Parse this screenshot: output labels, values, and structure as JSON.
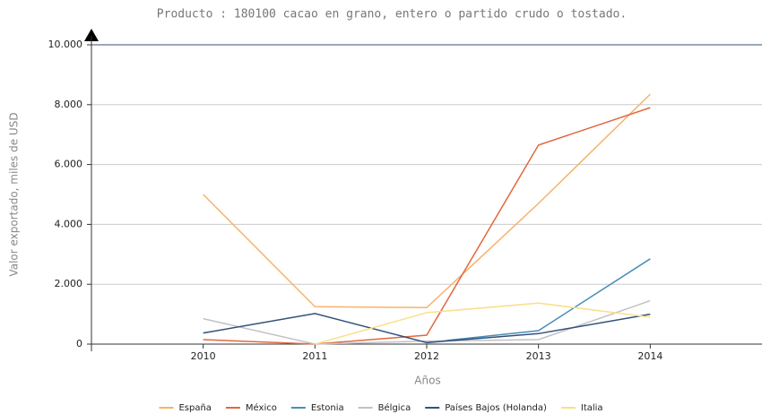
{
  "chart_data": {
    "type": "line",
    "title": "Producto : 180100 cacao en grano, entero o partido crudo o tostado.",
    "y_label": "Valor exportado, miles de USD",
    "x_label": "Años",
    "x": [
      2010,
      2011,
      2012,
      2013,
      2014
    ],
    "xlim": [
      2009,
      2015
    ],
    "xticks": [
      2010,
      2011,
      2012,
      2013,
      2014
    ],
    "ylim": [
      0,
      10000
    ],
    "yticks": [
      0,
      {
        "value": 2000,
        "label": "2.000"
      },
      {
        "value": 4000,
        "label": "4.000"
      },
      {
        "value": 6000,
        "label": "6.000"
      },
      {
        "value": 8000,
        "label": "8.000"
      },
      {
        "value": 10000,
        "label": "10.000"
      }
    ],
    "grid": true,
    "legend": "bottom",
    "series": [
      {
        "name": "España",
        "color": "#f7b26b",
        "values": [
          5000,
          1250,
          1220,
          4700,
          8350
        ]
      },
      {
        "name": "México",
        "color": "#e2683f",
        "values": [
          150,
          0,
          300,
          6650,
          7900
        ]
      },
      {
        "name": "Estonia",
        "color": "#4a8db8",
        "values": [
          null,
          null,
          50,
          450,
          2850
        ]
      },
      {
        "name": "Bélgica",
        "color": "#c2c2c2",
        "values": [
          850,
          0,
          100,
          150,
          1450
        ]
      },
      {
        "name": "Países Bajos (Holanda)",
        "color": "#34507a",
        "values": [
          370,
          1020,
          50,
          350,
          1000
        ]
      },
      {
        "name": "Italia",
        "color": "#fadf86",
        "values": [
          null,
          0,
          1050,
          1370,
          900
        ]
      }
    ]
  }
}
